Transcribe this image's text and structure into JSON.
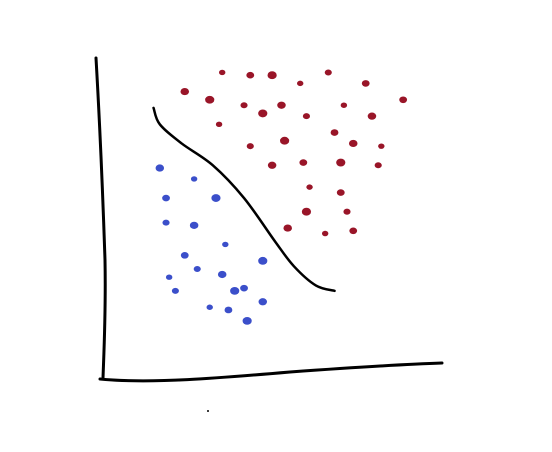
{
  "chart_data": {
    "type": "scatter",
    "title": "",
    "xlabel": "",
    "ylabel": "",
    "grid": false,
    "legend": "none",
    "xlim": [
      0,
      100
    ],
    "ylim": [
      0,
      100
    ],
    "series": [
      {
        "color": "#991528",
        "points": [
          [
            35,
            98
          ],
          [
            44,
            97
          ],
          [
            51,
            97
          ],
          [
            69,
            98
          ],
          [
            23,
            91
          ],
          [
            60,
            94
          ],
          [
            81,
            94
          ],
          [
            31,
            88
          ],
          [
            42,
            86
          ],
          [
            54,
            86
          ],
          [
            74,
            86
          ],
          [
            93,
            88
          ],
          [
            48,
            83
          ],
          [
            62,
            82
          ],
          [
            83,
            82
          ],
          [
            34,
            79
          ],
          [
            71,
            76
          ],
          [
            55,
            73
          ],
          [
            44,
            71
          ],
          [
            77,
            72
          ],
          [
            86,
            71
          ],
          [
            61,
            65
          ],
          [
            73,
            65
          ],
          [
            85,
            64
          ],
          [
            51,
            64
          ],
          [
            63,
            56
          ],
          [
            73,
            54
          ],
          [
            62,
            47
          ],
          [
            75,
            47
          ],
          [
            56,
            41
          ],
          [
            68,
            39
          ],
          [
            77,
            40
          ]
        ]
      },
      {
        "color": "#3b4fca",
        "points": [
          [
            15,
            63
          ],
          [
            26,
            59
          ],
          [
            17,
            52
          ],
          [
            33,
            52
          ],
          [
            17,
            43
          ],
          [
            26,
            42
          ],
          [
            36,
            35
          ],
          [
            23,
            31
          ],
          [
            48,
            29
          ],
          [
            27,
            26
          ],
          [
            35,
            24
          ],
          [
            18,
            23
          ],
          [
            42,
            19
          ],
          [
            39,
            18
          ],
          [
            20,
            18
          ],
          [
            48,
            14
          ],
          [
            31,
            12
          ],
          [
            37,
            11
          ],
          [
            43,
            7
          ]
        ]
      }
    ],
    "decision_boundary": {
      "color": "#000000",
      "points": [
        [
          13,
          85
        ],
        [
          15,
          79
        ],
        [
          22,
          72
        ],
        [
          32,
          64
        ],
        [
          42,
          52
        ],
        [
          52,
          36
        ],
        [
          58,
          27
        ],
        [
          65,
          20
        ],
        [
          71,
          18
        ]
      ]
    }
  }
}
